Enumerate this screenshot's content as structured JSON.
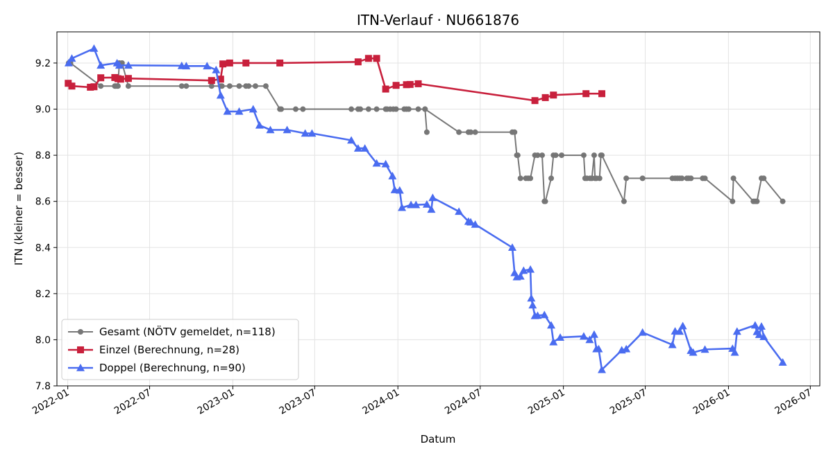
{
  "chart_data": {
    "type": "line",
    "title": "ITN-Verlauf · NU661876",
    "xlabel": "Datum",
    "ylabel": "ITN  (kleiner = besser)",
    "xlim": [
      "2021-12-08",
      "2026-07-22"
    ],
    "ylim": [
      7.8,
      9.335
    ],
    "grid": true,
    "legend_position": "lower-left",
    "x_ticks": [
      "2022-01",
      "2022-07",
      "2023-01",
      "2023-07",
      "2024-01",
      "2024-07",
      "2025-01",
      "2025-07",
      "2026-01",
      "2026-07"
    ],
    "y_ticks": [
      "7.8",
      "8.0",
      "8.2",
      "8.4",
      "8.6",
      "8.8",
      "9.0",
      "9.2"
    ],
    "series": [
      {
        "name": "Gesamt (NÖTV gemeldet, n=118)",
        "color": "#444444",
        "marker": "circle",
        "points": [
          [
            "2022-01-03",
            9.2
          ],
          [
            "2022-01-07",
            9.2
          ],
          [
            "2022-03-15",
            9.1
          ],
          [
            "2022-04-15",
            9.1
          ],
          [
            "2022-04-17",
            9.1
          ],
          [
            "2022-04-20",
            9.1
          ],
          [
            "2022-04-22",
            9.1
          ],
          [
            "2022-04-25",
            9.2
          ],
          [
            "2022-05-01",
            9.2
          ],
          [
            "2022-05-15",
            9.1
          ],
          [
            "2022-09-10",
            9.1
          ],
          [
            "2022-09-20",
            9.1
          ],
          [
            "2022-11-15",
            9.1
          ],
          [
            "2022-12-05",
            9.1
          ],
          [
            "2022-12-08",
            9.1
          ],
          [
            "2022-12-25",
            9.1
          ],
          [
            "2023-01-15",
            9.1
          ],
          [
            "2023-01-30",
            9.1
          ],
          [
            "2023-02-05",
            9.1
          ],
          [
            "2023-02-20",
            9.1
          ],
          [
            "2023-03-15",
            9.1
          ],
          [
            "2023-04-15",
            9.0
          ],
          [
            "2023-04-18",
            9.0
          ],
          [
            "2023-05-20",
            9.0
          ],
          [
            "2023-06-05",
            9.0
          ],
          [
            "2023-09-20",
            9.0
          ],
          [
            "2023-10-05",
            9.0
          ],
          [
            "2023-10-10",
            9.0
          ],
          [
            "2023-10-28",
            9.0
          ],
          [
            "2023-11-15",
            9.0
          ],
          [
            "2023-12-05",
            9.0
          ],
          [
            "2023-12-08",
            9.0
          ],
          [
            "2023-12-15",
            9.0
          ],
          [
            "2023-12-22",
            9.0
          ],
          [
            "2023-12-28",
            9.0
          ],
          [
            "2024-01-15",
            9.0
          ],
          [
            "2024-01-20",
            9.0
          ],
          [
            "2024-01-25",
            9.0
          ],
          [
            "2024-02-15",
            9.0
          ],
          [
            "2024-03-01",
            9.0
          ],
          [
            "2024-03-05",
            8.9
          ],
          [
            "2024-03-01",
            9.0
          ],
          [
            "2024-05-15",
            8.9
          ],
          [
            "2024-06-05",
            8.9
          ],
          [
            "2024-06-10",
            8.9
          ],
          [
            "2024-06-20",
            8.9
          ],
          [
            "2024-09-10",
            8.9
          ],
          [
            "2024-09-15",
            8.9
          ],
          [
            "2024-09-20",
            8.8
          ],
          [
            "2024-09-22",
            8.8
          ],
          [
            "2024-09-28",
            8.7
          ],
          [
            "2024-10-10",
            8.7
          ],
          [
            "2024-10-15",
            8.7
          ],
          [
            "2024-10-20",
            8.7
          ],
          [
            "2024-10-30",
            8.8
          ],
          [
            "2024-11-05",
            8.8
          ],
          [
            "2024-11-15",
            8.8
          ],
          [
            "2024-11-20",
            8.6
          ],
          [
            "2024-11-22",
            8.6
          ],
          [
            "2024-12-05",
            8.7
          ],
          [
            "2024-12-10",
            8.8
          ],
          [
            "2024-12-15",
            8.8
          ],
          [
            "2024-12-28",
            8.8
          ],
          [
            "2025-02-15",
            8.8
          ],
          [
            "2025-02-18",
            8.7
          ],
          [
            "2025-02-22",
            8.7
          ],
          [
            "2025-03-01",
            8.7
          ],
          [
            "2025-03-05",
            8.7
          ],
          [
            "2025-03-10",
            8.8
          ],
          [
            "2025-03-12",
            8.7
          ],
          [
            "2025-03-15",
            8.7
          ],
          [
            "2025-03-22",
            8.7
          ],
          [
            "2025-03-25",
            8.8
          ],
          [
            "2025-03-27",
            8.8
          ],
          [
            "2025-05-15",
            8.6
          ],
          [
            "2025-05-20",
            8.7
          ],
          [
            "2025-06-25",
            8.7
          ],
          [
            "2025-08-30",
            8.7
          ],
          [
            "2025-09-05",
            8.7
          ],
          [
            "2025-09-10",
            8.7
          ],
          [
            "2025-09-15",
            8.7
          ],
          [
            "2025-09-20",
            8.7
          ],
          [
            "2025-10-01",
            8.7
          ],
          [
            "2025-10-05",
            8.7
          ],
          [
            "2025-10-10",
            8.7
          ],
          [
            "2025-11-05",
            8.7
          ],
          [
            "2025-11-10",
            8.7
          ],
          [
            "2026-01-10",
            8.6
          ],
          [
            "2026-01-12",
            8.7
          ],
          [
            "2026-02-25",
            8.6
          ],
          [
            "2026-03-01",
            8.6
          ],
          [
            "2026-03-05",
            8.6
          ],
          [
            "2026-03-15",
            8.7
          ],
          [
            "2026-03-20",
            8.7
          ],
          [
            "2026-05-01",
            8.6
          ]
        ]
      },
      {
        "name": "Einzel (Berechnung, n=28)",
        "color": "#c8203c",
        "marker": "square",
        "points": [
          [
            "2022-01-02",
            9.112
          ],
          [
            "2022-01-10",
            9.1
          ],
          [
            "2022-02-20",
            9.095
          ],
          [
            "2022-02-28",
            9.097
          ],
          [
            "2022-03-15",
            9.136
          ],
          [
            "2022-04-15",
            9.137
          ],
          [
            "2022-04-22",
            9.132
          ],
          [
            "2022-04-28",
            9.13
          ],
          [
            "2022-05-15",
            9.133
          ],
          [
            "2022-11-15",
            9.124
          ],
          [
            "2022-12-05",
            9.13
          ],
          [
            "2022-12-10",
            9.196
          ],
          [
            "2022-12-25",
            9.2
          ],
          [
            "2023-01-30",
            9.2
          ],
          [
            "2023-04-15",
            9.2
          ],
          [
            "2023-10-05",
            9.205
          ],
          [
            "2023-10-28",
            9.22
          ],
          [
            "2023-11-15",
            9.22
          ],
          [
            "2023-12-05",
            9.087
          ],
          [
            "2023-12-28",
            9.103
          ],
          [
            "2024-01-20",
            9.106
          ],
          [
            "2024-01-28",
            9.107
          ],
          [
            "2024-02-15",
            9.11
          ],
          [
            "2024-10-30",
            9.037
          ],
          [
            "2024-11-22",
            9.05
          ],
          [
            "2024-12-10",
            9.061
          ],
          [
            "2025-02-20",
            9.067
          ],
          [
            "2025-03-27",
            9.067
          ]
        ]
      },
      {
        "name": "Doppel (Berechnung, n=90)",
        "color": "#4a6cf0",
        "marker": "triangle",
        "points": [
          [
            "2022-01-03",
            9.2
          ],
          [
            "2022-01-10",
            9.22
          ],
          [
            "2022-02-28",
            9.263
          ],
          [
            "2022-03-15",
            9.19
          ],
          [
            "2022-04-20",
            9.2
          ],
          [
            "2022-04-25",
            9.19
          ],
          [
            "2022-05-15",
            9.19
          ],
          [
            "2022-09-10",
            9.188
          ],
          [
            "2022-09-20",
            9.187
          ],
          [
            "2022-11-05",
            9.187
          ],
          [
            "2022-11-25",
            9.17
          ],
          [
            "2022-12-05",
            9.06
          ],
          [
            "2022-12-20",
            8.99
          ],
          [
            "2023-01-15",
            8.99
          ],
          [
            "2023-02-15",
            9.0
          ],
          [
            "2023-03-01",
            8.93
          ],
          [
            "2023-03-25",
            8.91
          ],
          [
            "2023-05-01",
            8.91
          ],
          [
            "2023-06-10",
            8.895
          ],
          [
            "2023-06-25",
            8.895
          ],
          [
            "2023-09-20",
            8.865
          ],
          [
            "2023-10-05",
            8.83
          ],
          [
            "2023-10-20",
            8.83
          ],
          [
            "2023-11-15",
            8.765
          ],
          [
            "2023-12-05",
            8.762
          ],
          [
            "2023-12-20",
            8.71
          ],
          [
            "2023-12-25",
            8.65
          ],
          [
            "2024-01-05",
            8.648
          ],
          [
            "2024-01-10",
            8.573
          ],
          [
            "2024-01-30",
            8.585
          ],
          [
            "2024-02-10",
            8.585
          ],
          [
            "2024-03-05",
            8.587
          ],
          [
            "2024-03-15",
            8.565
          ],
          [
            "2024-03-18",
            8.616
          ],
          [
            "2024-05-15",
            8.556
          ],
          [
            "2024-06-05",
            8.513
          ],
          [
            "2024-06-10",
            8.51
          ],
          [
            "2024-06-20",
            8.5
          ],
          [
            "2024-09-10",
            8.4
          ],
          [
            "2024-09-15",
            8.29
          ],
          [
            "2024-09-20",
            8.272
          ],
          [
            "2024-09-28",
            8.275
          ],
          [
            "2024-10-05",
            8.3
          ],
          [
            "2024-10-20",
            8.305
          ],
          [
            "2024-10-22",
            8.18
          ],
          [
            "2024-10-25",
            8.15
          ],
          [
            "2024-10-30",
            8.104
          ],
          [
            "2024-11-05",
            8.105
          ],
          [
            "2024-11-20",
            8.108
          ],
          [
            "2024-12-05",
            8.063
          ],
          [
            "2024-12-10",
            7.99
          ],
          [
            "2024-12-25",
            8.01
          ],
          [
            "2025-02-15",
            8.015
          ],
          [
            "2025-02-28",
            8.0
          ],
          [
            "2025-03-10",
            8.023
          ],
          [
            "2025-03-15",
            7.96
          ],
          [
            "2025-03-20",
            7.96
          ],
          [
            "2025-03-27",
            7.87
          ],
          [
            "2025-05-10",
            7.955
          ],
          [
            "2025-05-20",
            7.96
          ],
          [
            "2025-06-25",
            8.032
          ],
          [
            "2025-08-30",
            7.978
          ],
          [
            "2025-09-05",
            8.037
          ],
          [
            "2025-09-15",
            8.036
          ],
          [
            "2025-09-22",
            8.06
          ],
          [
            "2025-10-10",
            7.953
          ],
          [
            "2025-10-15",
            7.945
          ],
          [
            "2025-11-10",
            7.958
          ],
          [
            "2026-01-10",
            7.962
          ],
          [
            "2026-01-15",
            7.945
          ],
          [
            "2026-01-20",
            8.036
          ],
          [
            "2026-03-01",
            8.063
          ],
          [
            "2026-03-05",
            8.035
          ],
          [
            "2026-03-10",
            8.022
          ],
          [
            "2026-03-15",
            8.058
          ],
          [
            "2026-03-20",
            8.013
          ],
          [
            "2026-05-01",
            7.902
          ]
        ]
      }
    ]
  }
}
